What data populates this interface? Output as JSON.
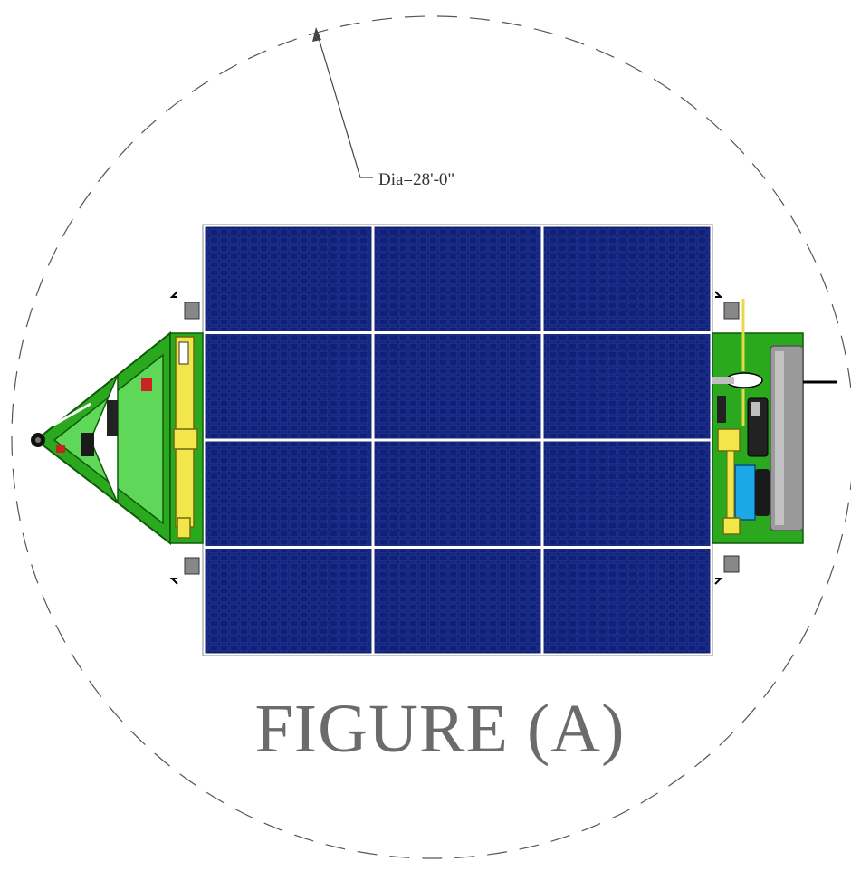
{
  "dimension_label": "Dia=28'-0\"",
  "caption": "FIGURE (A)",
  "colors": {
    "panel_blue": "#0b1a66",
    "cell_line": "#2a3fa8",
    "frame_green": "#2aa81e",
    "frame_light_green": "#5fd85a",
    "equipment_yellow": "#f2e64a",
    "battery_blue": "#1aa8e6",
    "tank_gray": "#9a9a9a",
    "dash_circle": "#555555",
    "caption_gray": "#6b6b6b"
  },
  "drawing": {
    "solar_array": {
      "rows": 4,
      "columns": 3
    }
  }
}
